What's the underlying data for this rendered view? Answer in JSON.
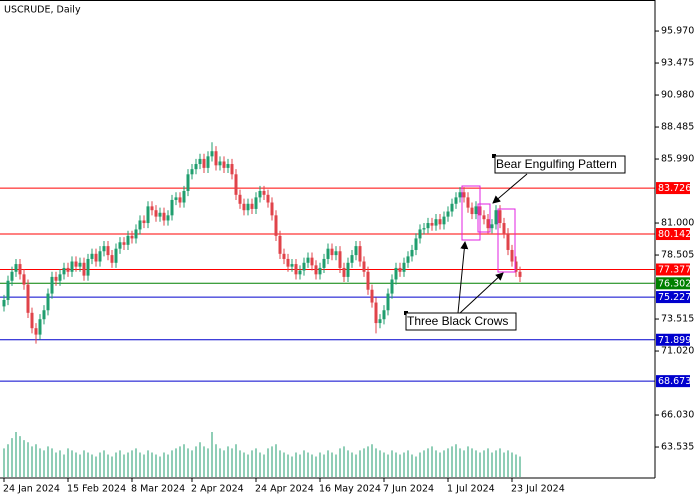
{
  "chart_data": {
    "type": "candlestick",
    "title": "USCRUDE, Daily",
    "categories": [
      "24 Jan 2024",
      null,
      null,
      null,
      null,
      null,
      null,
      null,
      null,
      null,
      null,
      null,
      null,
      null,
      null,
      null,
      "15 Feb 2024",
      null,
      null,
      null,
      null,
      null,
      null,
      null,
      null,
      null,
      null,
      null,
      null,
      null,
      null,
      null,
      "8 Mar 2024",
      null,
      null,
      null,
      null,
      null,
      null,
      null,
      null,
      null,
      null,
      null,
      null,
      null,
      null,
      "2 Apr 2024",
      null,
      null,
      null,
      null,
      null,
      null,
      null,
      null,
      null,
      null,
      null,
      null,
      null,
      null,
      null,
      "24 Apr 2024",
      null,
      null,
      null,
      null,
      null,
      null,
      null,
      null,
      null,
      null,
      null,
      null,
      null,
      null,
      null,
      "16 May 2024",
      null,
      null,
      null,
      null,
      null,
      null,
      null,
      null,
      null,
      null,
      null,
      null,
      null,
      null,
      null,
      "7 Jun 2024",
      null,
      null,
      null,
      null,
      null,
      null,
      null,
      null,
      null,
      null,
      null,
      null,
      null,
      null,
      null,
      "1 Jul 2024",
      null,
      null,
      null,
      null,
      null,
      null,
      null,
      null,
      null,
      null,
      null,
      null,
      null,
      null,
      null,
      "23 Jul 2024",
      null,
      null
    ],
    "open": [
      74.5,
      75.0,
      76.5,
      77.2,
      77.8,
      77.0,
      76.2,
      74.0,
      72.8,
      72.3,
      73.5,
      74.2,
      75.5,
      76.8,
      76.5,
      77.0,
      77.5,
      77.2,
      78.0,
      77.6,
      77.9,
      76.9,
      78.2,
      78.6,
      78.0,
      78.8,
      79.2,
      78.5,
      77.9,
      79.0,
      79.5,
      79.3,
      80.0,
      79.8,
      80.5,
      81.2,
      81.0,
      82.3,
      82.0,
      81.5,
      81.8,
      81.2,
      81.6,
      82.8,
      83.0,
      82.6,
      83.5,
      84.8,
      85.2,
      85.6,
      86.0,
      85.3,
      86.2,
      86.6,
      85.5,
      85.8,
      85.3,
      85.6,
      84.8,
      83.2,
      82.5,
      82.0,
      82.5,
      82.1,
      83.0,
      83.5,
      83.2,
      82.6,
      81.6,
      80.0,
      78.6,
      78.2,
      77.6,
      77.8,
      77.0,
      77.3,
      77.9,
      78.3,
      77.7,
      77.0,
      77.5,
      78.2,
      79.0,
      78.5,
      78.8,
      77.5,
      76.8,
      77.9,
      78.5,
      79.2,
      78.0,
      77.2,
      75.8,
      74.8,
      73.2,
      73.5,
      74.2,
      75.5,
      76.6,
      77.5,
      77.2,
      77.9,
      78.4,
      78.9,
      79.8,
      80.5,
      80.6,
      81.0,
      80.8,
      81.3,
      80.9,
      81.5,
      81.9,
      82.5,
      83.0,
      83.4,
      83.0,
      82.2,
      81.7,
      82.3,
      81.6,
      81.3,
      80.6,
      80.9,
      82.0,
      81.0,
      80.2,
      78.9,
      78.0,
      77.2
    ],
    "high": [
      75.4,
      76.9,
      77.6,
      78.2,
      78.2,
      77.4,
      76.6,
      74.4,
      73.2,
      73.9,
      74.6,
      75.9,
      77.2,
      77.2,
      77.4,
      77.9,
      77.9,
      78.4,
      78.4,
      78.3,
      78.3,
      78.6,
      79.0,
      79.0,
      79.2,
      79.6,
      79.6,
      78.9,
      79.4,
      79.9,
      79.9,
      80.4,
      80.4,
      80.9,
      81.6,
      81.6,
      82.7,
      82.7,
      82.4,
      82.2,
      82.2,
      82.0,
      83.2,
      83.4,
      83.4,
      83.9,
      85.2,
      85.6,
      86.0,
      86.4,
      86.4,
      86.6,
      87.3,
      87.0,
      86.2,
      86.2,
      86.0,
      86.0,
      85.2,
      83.6,
      82.9,
      82.9,
      82.9,
      83.4,
      83.9,
      83.9,
      83.6,
      83.0,
      82.0,
      80.4,
      79.0,
      78.6,
      78.2,
      78.2,
      77.7,
      78.3,
      78.7,
      78.7,
      78.1,
      77.9,
      78.6,
      79.4,
      79.4,
      79.2,
      79.2,
      77.9,
      78.3,
      78.9,
      79.6,
      79.6,
      78.4,
      77.6,
      76.2,
      75.2,
      73.9,
      74.6,
      75.9,
      77.0,
      77.9,
      77.9,
      78.3,
      78.8,
      79.3,
      80.2,
      80.9,
      81.0,
      81.4,
      81.4,
      81.7,
      81.7,
      81.9,
      82.3,
      82.9,
      83.4,
      83.8,
      83.8,
      83.4,
      82.6,
      82.7,
      82.7,
      82.0,
      81.7,
      81.3,
      82.4,
      82.4,
      81.4,
      80.6,
      79.3,
      78.4,
      77.6
    ],
    "low": [
      74.1,
      74.6,
      76.1,
      76.8,
      76.6,
      75.8,
      73.6,
      72.4,
      71.6,
      71.9,
      73.1,
      73.8,
      75.1,
      76.1,
      76.1,
      76.6,
      76.8,
      76.8,
      77.2,
      77.2,
      76.5,
      76.5,
      77.8,
      77.6,
      77.6,
      78.4,
      78.1,
      77.5,
      77.5,
      78.6,
      78.9,
      78.9,
      79.4,
      79.4,
      80.1,
      80.6,
      80.6,
      81.6,
      81.1,
      81.1,
      80.8,
      80.8,
      81.2,
      82.4,
      82.2,
      82.2,
      83.1,
      84.4,
      84.8,
      85.2,
      84.9,
      84.9,
      85.8,
      85.1,
      85.1,
      84.9,
      84.9,
      84.4,
      82.8,
      82.1,
      81.6,
      81.6,
      81.7,
      81.7,
      82.6,
      82.8,
      82.2,
      81.2,
      79.6,
      78.2,
      77.8,
      77.2,
      77.2,
      76.6,
      76.6,
      76.9,
      77.5,
      77.3,
      76.6,
      76.6,
      77.1,
      77.8,
      78.1,
      78.1,
      77.1,
      76.4,
      76.4,
      77.5,
      78.1,
      77.6,
      76.8,
      75.4,
      74.4,
      72.4,
      72.8,
      73.1,
      73.8,
      75.1,
      76.2,
      76.8,
      76.8,
      77.5,
      78.0,
      78.5,
      79.4,
      80.1,
      80.2,
      80.4,
      80.4,
      80.5,
      80.5,
      81.1,
      81.5,
      82.1,
      82.6,
      82.6,
      81.8,
      81.3,
      81.3,
      81.2,
      80.9,
      80.2,
      80.2,
      80.5,
      80.6,
      79.8,
      78.5,
      77.6,
      76.8,
      76.4
    ],
    "close": [
      75.0,
      76.5,
      77.2,
      77.8,
      77.0,
      76.2,
      74.0,
      72.8,
      72.3,
      73.5,
      74.2,
      75.5,
      76.8,
      76.5,
      77.0,
      77.5,
      77.2,
      78.0,
      77.6,
      77.9,
      76.9,
      78.2,
      78.6,
      78.0,
      78.8,
      79.2,
      78.5,
      77.9,
      79.0,
      79.5,
      79.3,
      80.0,
      79.8,
      80.5,
      81.2,
      81.0,
      82.3,
      82.0,
      81.5,
      81.8,
      81.2,
      81.6,
      82.8,
      83.0,
      82.6,
      83.5,
      84.8,
      85.2,
      85.6,
      86.0,
      85.3,
      86.2,
      86.6,
      85.5,
      85.8,
      85.3,
      85.6,
      84.8,
      83.2,
      82.5,
      82.0,
      82.5,
      82.1,
      83.0,
      83.5,
      83.2,
      82.6,
      81.6,
      80.0,
      78.6,
      78.2,
      77.6,
      77.8,
      77.0,
      77.3,
      77.9,
      78.3,
      77.7,
      77.0,
      77.5,
      78.2,
      79.0,
      78.5,
      78.8,
      77.5,
      76.8,
      77.9,
      78.5,
      79.2,
      78.0,
      77.2,
      75.8,
      74.8,
      73.2,
      73.5,
      74.2,
      75.5,
      76.6,
      77.5,
      77.2,
      77.9,
      78.4,
      78.9,
      79.8,
      80.5,
      80.6,
      81.0,
      80.8,
      81.3,
      80.9,
      81.5,
      81.9,
      82.5,
      83.0,
      83.4,
      83.0,
      82.2,
      81.7,
      82.3,
      81.6,
      81.3,
      80.6,
      80.9,
      82.0,
      81.0,
      80.2,
      78.9,
      78.0,
      77.2,
      76.8
    ],
    "volume": [
      28,
      32,
      38,
      44,
      40,
      36,
      34,
      30,
      32,
      28,
      26,
      30,
      28,
      24,
      26,
      22,
      28,
      26,
      24,
      22,
      26,
      24,
      22,
      20,
      24,
      26,
      22,
      20,
      24,
      26,
      22,
      24,
      26,
      28,
      24,
      22,
      26,
      24,
      22,
      20,
      24,
      22,
      26,
      28,
      30,
      32,
      28,
      26,
      30,
      34,
      30,
      28,
      44,
      32,
      28,
      26,
      30,
      28,
      32,
      26,
      24,
      22,
      26,
      28,
      24,
      22,
      28,
      30,
      32,
      26,
      24,
      22,
      20,
      24,
      22,
      26,
      24,
      22,
      20,
      24,
      22,
      26,
      24,
      22,
      28,
      30,
      26,
      24,
      22,
      26,
      28,
      30,
      32,
      28,
      26,
      24,
      22,
      26,
      24,
      22,
      24,
      26,
      22,
      20,
      24,
      26,
      28,
      30,
      26,
      24,
      26,
      28,
      30,
      32,
      28,
      26,
      30,
      28,
      26,
      24,
      26,
      28,
      24,
      26,
      28,
      24,
      26,
      24,
      22,
      20
    ],
    "bull_color": "#1f9e6e",
    "bear_color": "#e0434a",
    "ylim": [
      61.12,
      98.39
    ],
    "yticks": [
      {
        "value": 95.97,
        "label": "95.970"
      },
      93.475,
      {
        "value": 90.98,
        "label": "90.980"
      },
      88.485,
      {
        "value": 85.99,
        "label": "85.990"
      },
      {
        "value": 81,
        "label": "81.000"
      },
      78.505,
      73.515,
      {
        "value": 71.02,
        "label": "71.020"
      },
      {
        "value": 66.03,
        "label": "66.030"
      },
      63.535
    ],
    "levels": [
      {
        "value": 83.726,
        "color": "#ff0000"
      },
      {
        "value": 80.142,
        "color": "#ff0000"
      },
      {
        "value": 77.377,
        "color": "#ff0000"
      },
      {
        "value": 76.302,
        "color": "#008000"
      },
      {
        "value": 75.227,
        "color": "#0000cd"
      },
      {
        "value": 71.899,
        "color": "#0000cd"
      },
      {
        "value": 68.673,
        "color": "#0000cd"
      }
    ],
    "annotations": [
      "Bear Engulfing Pattern",
      "Three Black Crows"
    ]
  }
}
